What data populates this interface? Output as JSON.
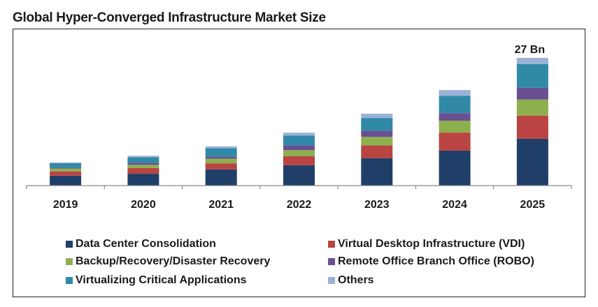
{
  "chart_data": {
    "type": "bar",
    "stacked": true,
    "title": "Global Hyper-Converged Infrastructure Market Size",
    "xlabel": "",
    "ylabel": "",
    "categories": [
      "2019",
      "2020",
      "2021",
      "2022",
      "2023",
      "2024",
      "2025"
    ],
    "ylim": [
      0,
      27
    ],
    "grid": false,
    "legend_position": "bottom",
    "annotations": [
      {
        "category": "2025",
        "text": "27 Bn"
      }
    ],
    "series": [
      {
        "name": "Data Center Consolidation",
        "color": "#1f3f68",
        "values": [
          2.1,
          2.5,
          3.4,
          4.3,
          5.8,
          7.4,
          9.9
        ]
      },
      {
        "name": "Virtual Desktop Infrastructure (VDI)",
        "color": "#b94441",
        "values": [
          0.9,
          1.2,
          1.3,
          1.9,
          2.7,
          3.8,
          4.9
        ]
      },
      {
        "name": "Backup/Recovery/Disaster Recovery",
        "color": "#8eaf4d",
        "values": [
          0.6,
          0.7,
          1.0,
          1.3,
          1.8,
          2.5,
          3.4
        ]
      },
      {
        "name": "Remote Office Branch Office (ROBO)",
        "color": "#6a4f93",
        "values": [
          0.15,
          0.4,
          0.4,
          1.0,
          1.3,
          1.6,
          2.5
        ]
      },
      {
        "name": "Virtualizing Critical Applications",
        "color": "#3189a8",
        "values": [
          1.0,
          1.2,
          1.8,
          2.1,
          2.7,
          3.7,
          5.0
        ]
      },
      {
        "name": "Others",
        "color": "#9bb1d6",
        "values": [
          0.15,
          0.3,
          0.4,
          0.6,
          0.9,
          1.2,
          1.3
        ]
      }
    ],
    "legend_order": [
      0,
      1,
      2,
      3,
      4,
      5
    ]
  },
  "colors": {
    "axis": "#8a8a8a",
    "text": "#1a1a1a"
  }
}
